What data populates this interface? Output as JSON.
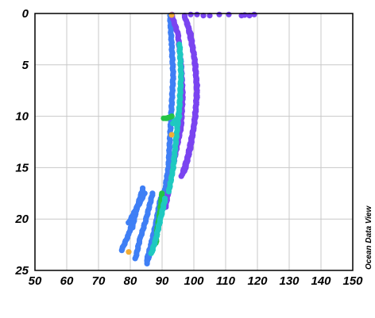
{
  "chart_data": {
    "type": "scatter",
    "title": "",
    "xlabel": "",
    "ylabel": "",
    "xlim": [
      50,
      150
    ],
    "ylim": [
      25,
      0
    ],
    "y_inverted": true,
    "grid": true,
    "x_ticks": [
      "50",
      "60",
      "70",
      "80",
      "90",
      "100",
      "110",
      "120",
      "130",
      "140",
      "150"
    ],
    "y_ticks": [
      "0",
      "5",
      "10",
      "15",
      "20",
      "25"
    ],
    "colors": {
      "low": "#7a44f0",
      "mid_low": "#3f7ff5",
      "mid": "#1fc9c0",
      "high": "#24c446",
      "peak": "#f2ad36"
    },
    "bands": [
      {
        "color": "mid_low",
        "points": [
          [
            92.5,
            0.2
          ],
          [
            93,
            3
          ],
          [
            93.5,
            6
          ],
          [
            93,
            9
          ],
          [
            92.5,
            12
          ],
          [
            92,
            15
          ],
          [
            91,
            17
          ],
          [
            89.5,
            19
          ],
          [
            88,
            21
          ],
          [
            86.5,
            23
          ],
          [
            85,
            24.5
          ]
        ]
      },
      {
        "color": "low",
        "points": [
          [
            93,
            0.1
          ],
          [
            95,
            2
          ],
          [
            96,
            5
          ],
          [
            96.5,
            8
          ],
          [
            96,
            11
          ],
          [
            94,
            14
          ],
          [
            92.5,
            16.5
          ],
          [
            91,
            19
          ]
        ]
      },
      {
        "color": "low",
        "points": [
          [
            97,
            0.2
          ],
          [
            99,
            2
          ],
          [
            100.5,
            5
          ],
          [
            101,
            8
          ],
          [
            100,
            11
          ],
          [
            98,
            14
          ],
          [
            96,
            16
          ]
        ]
      },
      {
        "color": "low",
        "points": [
          [
            98,
            1
          ],
          [
            100,
            4
          ],
          [
            101,
            7
          ],
          [
            100.5,
            10
          ],
          [
            99,
            13
          ],
          [
            97,
            15.5
          ]
        ]
      },
      {
        "color": "mid",
        "points": [
          [
            95.5,
            3
          ],
          [
            96,
            6
          ],
          [
            95.5,
            9
          ],
          [
            94.5,
            12
          ],
          [
            93.5,
            15
          ],
          [
            92,
            17.5
          ]
        ]
      },
      {
        "color": "mid_low",
        "points": [
          [
            84,
            17
          ],
          [
            81.5,
            19.5
          ],
          [
            79.5,
            21.5
          ],
          [
            77,
            23.2
          ]
        ]
      },
      {
        "color": "mid_low",
        "points": [
          [
            87,
            17.5
          ],
          [
            85,
            20
          ],
          [
            83,
            22
          ],
          [
            81.5,
            24
          ]
        ]
      },
      {
        "color": "mid_low",
        "points": [
          [
            89.5,
            18
          ],
          [
            88,
            20.5
          ],
          [
            86.5,
            22.5
          ],
          [
            85,
            24.2
          ]
        ]
      },
      {
        "color": "mid_low",
        "points": [
          [
            83.5,
            18
          ],
          [
            81,
            19.5
          ],
          [
            79.3,
            20.5
          ]
        ]
      },
      {
        "color": "mid_low",
        "points": [
          [
            84.5,
            17.5
          ],
          [
            82,
            19
          ],
          [
            80.5,
            21
          ]
        ]
      },
      {
        "color": "high",
        "points": [
          [
            90,
            17.5
          ],
          [
            89.3,
            19.5
          ],
          [
            88.5,
            21
          ],
          [
            88,
            22.5
          ]
        ]
      },
      {
        "color": "mid",
        "points": [
          [
            91,
            18
          ],
          [
            89.5,
            20
          ],
          [
            88,
            22
          ],
          [
            86.5,
            23.5
          ]
        ]
      },
      {
        "color": "mid",
        "points": [
          [
            95.5,
            10
          ],
          [
            94,
            10.5
          ],
          [
            93,
            10.8
          ]
        ]
      },
      {
        "color": "high",
        "points": [
          [
            93,
            10
          ],
          [
            91.5,
            10.2
          ],
          [
            90,
            10.2
          ]
        ]
      }
    ],
    "surface_points": [
      {
        "x": 99,
        "y": 0.1,
        "color": "low"
      },
      {
        "x": 101,
        "y": 0.1,
        "color": "low"
      },
      {
        "x": 103,
        "y": 0.2,
        "color": "low"
      },
      {
        "x": 105,
        "y": 0.2,
        "color": "low"
      },
      {
        "x": 108,
        "y": 0.1,
        "color": "low"
      },
      {
        "x": 111,
        "y": 0.1,
        "color": "low"
      },
      {
        "x": 115,
        "y": 0.2,
        "color": "low"
      },
      {
        "x": 116,
        "y": 0.15,
        "color": "low"
      },
      {
        "x": 117.5,
        "y": 0.2,
        "color": "low"
      },
      {
        "x": 119,
        "y": 0.1,
        "color": "low"
      }
    ],
    "highlight_points": [
      {
        "x": 93,
        "y": 0.15,
        "color": "peak"
      },
      {
        "x": 93,
        "y": 11.8,
        "color": "peak"
      },
      {
        "x": 79.5,
        "y": 23.2,
        "color": "peak"
      }
    ]
  },
  "watermark": "Ocean Data View"
}
